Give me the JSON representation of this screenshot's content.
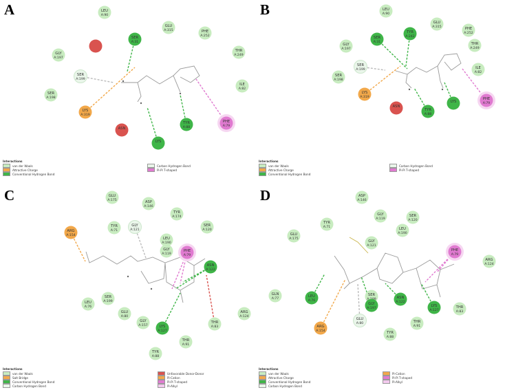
{
  "colors": {
    "vdw": "#c8ecc0",
    "hbond": "#3fb548",
    "attractive": "#f2a84a",
    "unfavorable": "#d9534f",
    "pipi": "#e07ad0",
    "pialkyl": "#f3c9ee",
    "carbon_h": "#eaf6ea",
    "salt_bridge": "#f2a84a",
    "pi_cation": "#f2a84a"
  },
  "panels": [
    {
      "letter": "A",
      "legend_title": "Interactions",
      "legend_left": [
        {
          "label": "van der Waals",
          "color": "#c8ecc0"
        },
        {
          "label": "Attractive Charge",
          "color": "#f2a84a"
        },
        {
          "label": "Conventional Hydrogen Bond",
          "color": "#3fb548"
        }
      ],
      "legend_right": [
        {
          "label": "Carbon Hydrogen Bond",
          "color": "#eaf6ea"
        },
        {
          "label": "Pi-Pi T-shaped",
          "color": "#e07ad0"
        }
      ],
      "residues": [
        {
          "name": "LEU",
          "num": "A:90",
          "type": "vdw"
        },
        {
          "name": "GLU",
          "num": "A:315",
          "type": "vdw"
        },
        {
          "name": "PHE",
          "num": "A:252",
          "type": "vdw"
        },
        {
          "name": "SER",
          "num": "A:31",
          "type": "hbond"
        },
        {
          "name": "",
          "num": "",
          "type": "unfavorable"
        },
        {
          "name": "GLY",
          "num": "A:197",
          "type": "vdw"
        },
        {
          "name": "THR",
          "num": "A:249",
          "type": "vdw"
        },
        {
          "name": "SER",
          "num": "A:199",
          "type": "carbon_h"
        },
        {
          "name": "ILE",
          "num": "A:82",
          "type": "vdw"
        },
        {
          "name": "SER",
          "num": "A:198",
          "type": "vdw"
        },
        {
          "name": "LYS",
          "num": "A:319",
          "type": "attractive"
        },
        {
          "name": "TYR",
          "num": "A:88",
          "type": "hbond"
        },
        {
          "name": "PHE",
          "num": "A:79",
          "type": "pipi"
        },
        {
          "name": "ASN",
          "num": "",
          "type": "unfavorable"
        },
        {
          "name": "LYS",
          "num": "",
          "type": "hbond"
        }
      ]
    },
    {
      "letter": "B",
      "legend_title": "Interactions",
      "legend_left": [
        {
          "label": "van der Waals",
          "color": "#c8ecc0"
        },
        {
          "label": "Attractive Charge",
          "color": "#f2a84a"
        },
        {
          "label": "Conventional Hydrogen Bond",
          "color": "#3fb548"
        }
      ],
      "legend_right": [
        {
          "label": "Carbon Hydrogen Bond",
          "color": "#eaf6ea"
        },
        {
          "label": "Pi-Pi T-shaped",
          "color": "#e07ad0"
        }
      ],
      "residues": [
        {
          "name": "LEU",
          "num": "A:90",
          "type": "vdw"
        },
        {
          "name": "SER",
          "num": "A:31",
          "type": "hbond"
        },
        {
          "name": "TYR",
          "num": "A:242",
          "type": "hbond"
        },
        {
          "name": "GLU",
          "num": "A:315",
          "type": "vdw"
        },
        {
          "name": "PHE",
          "num": "A:252",
          "type": "vdw"
        },
        {
          "name": "GLY",
          "num": "A:197",
          "type": "vdw"
        },
        {
          "name": "THR",
          "num": "A:249",
          "type": "vdw"
        },
        {
          "name": "SER",
          "num": "A:199",
          "type": "carbon_h"
        },
        {
          "name": "ILE",
          "num": "A:82",
          "type": "vdw"
        },
        {
          "name": "SER",
          "num": "A:198",
          "type": "vdw"
        },
        {
          "name": "LYS",
          "num": "A:319",
          "type": "attractive"
        },
        {
          "name": "ASN",
          "num": "",
          "type": "unfavorable"
        },
        {
          "name": "TYR",
          "num": "A:88",
          "type": "hbond"
        },
        {
          "name": "PHE",
          "num": "A:79",
          "type": "pipi"
        },
        {
          "name": "LYS",
          "num": "",
          "type": "hbond"
        }
      ]
    },
    {
      "letter": "C",
      "legend_title": "Interactions",
      "legend_left": [
        {
          "label": "van der Waals",
          "color": "#c8ecc0"
        },
        {
          "label": "Salt Bridge",
          "color": "#f2a84a"
        },
        {
          "label": "Conventional Hydrogen Bond",
          "color": "#3fb548"
        },
        {
          "label": "Carbon Hydrogen Bond",
          "color": "#eaf6ea"
        }
      ],
      "legend_right": [
        {
          "label": "Unfavorable Donor-Donor",
          "color": "#d9534f"
        },
        {
          "label": "Pi-Cation",
          "color": "#f2a84a"
        },
        {
          "label": "Pi-Pi T-shaped",
          "color": "#e07ad0"
        },
        {
          "label": "Pi-Alkyl",
          "color": "#f3c9ee"
        }
      ],
      "residues": [
        {
          "name": "GLU",
          "num": "A:175",
          "type": "vdw"
        },
        {
          "name": "ASP",
          "num": "A:146",
          "type": "vdw"
        },
        {
          "name": "TYR",
          "num": "A:174",
          "type": "vdw"
        },
        {
          "name": "ARG",
          "num": "A:154",
          "type": "attractive"
        },
        {
          "name": "TYR",
          "num": "A:71",
          "type": "vdw"
        },
        {
          "name": "GLY",
          "num": "A:121",
          "type": "carbon_h"
        },
        {
          "name": "SER",
          "num": "A:120",
          "type": "vdw"
        },
        {
          "name": "LEU",
          "num": "A:190",
          "type": "vdw"
        },
        {
          "name": "GLY",
          "num": "A:119",
          "type": "vdw"
        },
        {
          "name": "PHE",
          "num": "A:79",
          "type": "pipi"
        },
        {
          "name": "ASN",
          "num": "A:122",
          "type": "hbond"
        },
        {
          "name": "LEU",
          "num": "A:76",
          "type": "vdw"
        },
        {
          "name": "SER",
          "num": "A:199",
          "type": "vdw"
        },
        {
          "name": "GLU",
          "num": "A:80",
          "type": "vdw"
        },
        {
          "name": "GLY",
          "num": "A:157",
          "type": "vdw"
        },
        {
          "name": "LYS",
          "num": "A:127",
          "type": "hbond"
        },
        {
          "name": "THR",
          "num": "A:83",
          "type": "vdw"
        },
        {
          "name": "ARG",
          "num": "A:124",
          "type": "vdw"
        },
        {
          "name": "THR",
          "num": "A:91",
          "type": "vdw"
        },
        {
          "name": "TYR",
          "num": "A:88",
          "type": "vdw"
        }
      ]
    },
    {
      "letter": "D",
      "legend_title": "Interactions",
      "legend_left": [
        {
          "label": "van der Waals",
          "color": "#c8ecc0"
        },
        {
          "label": "Attractive Charge",
          "color": "#f2a84a"
        },
        {
          "label": "Conventional Hydrogen Bond",
          "color": "#3fb548"
        },
        {
          "label": "Carbon Hydrogen Bond",
          "color": "#eaf6ea"
        }
      ],
      "legend_right": [
        {
          "label": "Pi-Cation",
          "color": "#f2a84a"
        },
        {
          "label": "Pi-Pi T-shaped",
          "color": "#e07ad0"
        },
        {
          "label": "Pi-Alkyl",
          "color": "#f3c9ee"
        }
      ],
      "residues": [
        {
          "name": "ASP",
          "num": "A:146",
          "type": "vdw"
        },
        {
          "name": "TYR",
          "num": "A:71",
          "type": "vdw"
        },
        {
          "name": "GLY",
          "num": "A:119",
          "type": "vdw"
        },
        {
          "name": "SER",
          "num": "A:120",
          "type": "vdw"
        },
        {
          "name": "GLU",
          "num": "A:175",
          "type": "vdw"
        },
        {
          "name": "LEU",
          "num": "A:190",
          "type": "vdw"
        },
        {
          "name": "GLY",
          "num": "A:121",
          "type": "vdw"
        },
        {
          "name": "PHE",
          "num": "A:79",
          "type": "pipi"
        },
        {
          "name": "ARG",
          "num": "A:124",
          "type": "vdw"
        },
        {
          "name": "GLN",
          "num": "A:77",
          "type": "vdw"
        },
        {
          "name": "LEU",
          "num": "A:76",
          "type": "hbond"
        },
        {
          "name": "SER",
          "num": "A:199",
          "type": "vdw"
        },
        {
          "name": "GLY",
          "num": "A:197",
          "type": "hbond"
        },
        {
          "name": "ASN",
          "num": "A:122",
          "type": "hbond"
        },
        {
          "name": "LYS",
          "num": "A:127",
          "type": "hbond"
        },
        {
          "name": "THR",
          "num": "A:83",
          "type": "vdw"
        },
        {
          "name": "ARG",
          "num": "A:154",
          "type": "attractive"
        },
        {
          "name": "GLU",
          "num": "A:80",
          "type": "carbon_h"
        },
        {
          "name": "THR",
          "num": "A:91",
          "type": "vdw"
        },
        {
          "name": "TYR",
          "num": "A:88",
          "type": "vdw"
        }
      ]
    }
  ]
}
